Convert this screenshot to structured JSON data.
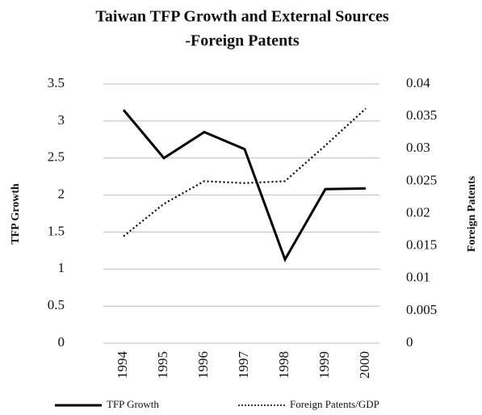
{
  "chart_data": {
    "type": "line",
    "title": [
      "Taiwan TFP Growth and External Sources",
      "-Foreign Patents"
    ],
    "y_label": "TFP Growth",
    "y2_label": "Foreign Patents",
    "categories": [
      "1994",
      "1995",
      "1996",
      "1997",
      "1998",
      "1999",
      "2000"
    ],
    "series": [
      {
        "name": "TFP Growth",
        "color": "#000000",
        "style": "solid",
        "values": [
          3.15,
          2.5,
          2.85,
          2.62,
          1.13,
          2.08,
          2.09
        ]
      },
      {
        "name": "Foreign Patents/GDP",
        "color": "#000000",
        "style": "dotted",
        "axis": "y2",
        "values": [
          0.0165,
          0.0215,
          0.025,
          0.0247,
          0.025,
          0.0305,
          0.0362
        ]
      }
    ],
    "ylim": [
      0,
      3.5
    ],
    "yticks": [
      0,
      0.5,
      1,
      1.5,
      2,
      2.5,
      3,
      3.5
    ],
    "y2lim": [
      0,
      0.04
    ],
    "y2ticks": [
      0,
      0.005,
      0.01,
      0.015,
      0.02,
      0.025,
      0.03,
      0.035,
      0.04
    ],
    "grid": true,
    "legend": "bottom"
  }
}
